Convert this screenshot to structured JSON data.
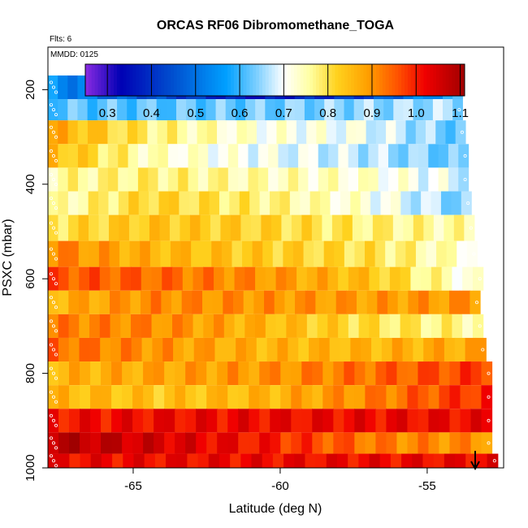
{
  "chart_data": {
    "type": "heatmap",
    "title": "ORCAS RF06 Dibromomethane_TOGA",
    "annotations": {
      "flights": "Flts: 6",
      "mmdd": "MMDD: 0125"
    },
    "xlabel": "Latitude (deg N)",
    "ylabel": "PSXC (mbar)",
    "xlim": [
      -67.9,
      -52.4
    ],
    "ylim": [
      1000,
      110
    ],
    "x_ticks": [
      -65,
      -60,
      -55
    ],
    "x_tick_labels": [
      "-65",
      "-60",
      "-55"
    ],
    "y_ticks": [
      200,
      400,
      600,
      800,
      1000
    ],
    "y_tick_labels": [
      "200",
      "400",
      "600",
      "800",
      "1000"
    ],
    "colorbar": {
      "min": 0.25,
      "max": 1.11,
      "ticks": [
        0.3,
        0.4,
        0.5,
        0.6,
        0.7,
        0.8,
        0.9,
        1.0,
        1.1
      ],
      "tick_labels": [
        "0.3",
        "0.4",
        "0.5",
        "0.6",
        "0.7",
        "0.8",
        "0.9",
        "1.0",
        "1.1"
      ],
      "colors": [
        "#8a2be2",
        "#0000b4",
        "#0050d0",
        "#00a0ff",
        "#7fd0ff",
        "#ffffff",
        "#ffffa0",
        "#ffd21e",
        "#ffa000",
        "#ff5000",
        "#f00000",
        "#a00000"
      ],
      "color_positions": [
        0.25,
        0.33,
        0.45,
        0.57,
        0.64,
        0.7,
        0.76,
        0.82,
        0.89,
        0.96,
        1.02,
        1.11
      ]
    },
    "layers": [
      {
        "p_top": 170,
        "p_bot": 220,
        "lat_max": -53.8,
        "values": [
          0.55,
          0.45,
          0.35,
          0.42,
          0.6
        ]
      },
      {
        "p_top": 220,
        "p_bot": 265,
        "lat_max": -53.8,
        "values": [
          0.62,
          0.62,
          0.63,
          0.65,
          0.66
        ]
      },
      {
        "p_top": 265,
        "p_bot": 315,
        "lat_max": -53.7,
        "values": [
          0.88,
          0.78,
          0.72,
          0.7,
          0.62
        ]
      },
      {
        "p_top": 315,
        "p_bot": 365,
        "lat_max": -53.6,
        "values": [
          0.86,
          0.74,
          0.7,
          0.67,
          0.62
        ]
      },
      {
        "p_top": 365,
        "p_bot": 415,
        "lat_max": -53.6,
        "values": [
          0.76,
          0.78,
          0.75,
          0.73,
          0.68
        ]
      },
      {
        "p_top": 415,
        "p_bot": 465,
        "lat_max": -53.5,
        "values": [
          0.74,
          0.82,
          0.78,
          0.72,
          0.63
        ]
      },
      {
        "p_top": 465,
        "p_bot": 520,
        "lat_max": -53.4,
        "values": [
          0.8,
          0.84,
          0.82,
          0.78,
          0.75
        ]
      },
      {
        "p_top": 520,
        "p_bot": 575,
        "lat_max": -53.3,
        "values": [
          0.92,
          0.86,
          0.83,
          0.8,
          0.72
        ]
      },
      {
        "p_top": 575,
        "p_bot": 625,
        "lat_max": -53.1,
        "values": [
          0.96,
          0.94,
          0.9,
          0.84,
          0.7
        ]
      },
      {
        "p_top": 625,
        "p_bot": 675,
        "lat_max": -53.2,
        "values": [
          0.86,
          0.91,
          0.9,
          0.89,
          0.9
        ]
      },
      {
        "p_top": 675,
        "p_bot": 725,
        "lat_max": -53.1,
        "values": [
          0.92,
          0.91,
          0.86,
          0.8,
          0.76
        ]
      },
      {
        "p_top": 725,
        "p_bot": 775,
        "lat_max": -53.0,
        "values": [
          0.94,
          0.9,
          0.86,
          0.86,
          0.88
        ]
      },
      {
        "p_top": 775,
        "p_bot": 825,
        "lat_max": -52.8,
        "values": [
          0.86,
          0.88,
          0.9,
          0.94,
          0.98
        ]
      },
      {
        "p_top": 825,
        "p_bot": 875,
        "lat_max": -52.8,
        "values": [
          0.86,
          0.84,
          0.86,
          0.92,
          1.0
        ]
      },
      {
        "p_top": 875,
        "p_bot": 925,
        "lat_max": -52.8,
        "values": [
          1.01,
          1.02,
          1.02,
          1.02,
          1.02
        ]
      },
      {
        "p_top": 925,
        "p_bot": 970,
        "lat_max": -52.8,
        "values": [
          1.09,
          1.05,
          1.0,
          0.92,
          0.9
        ]
      },
      {
        "p_top": 970,
        "p_bot": 1010,
        "lat_max": -52.6,
        "values": [
          1.02,
          1.02,
          1.02,
          1.02,
          1.02
        ]
      }
    ]
  }
}
